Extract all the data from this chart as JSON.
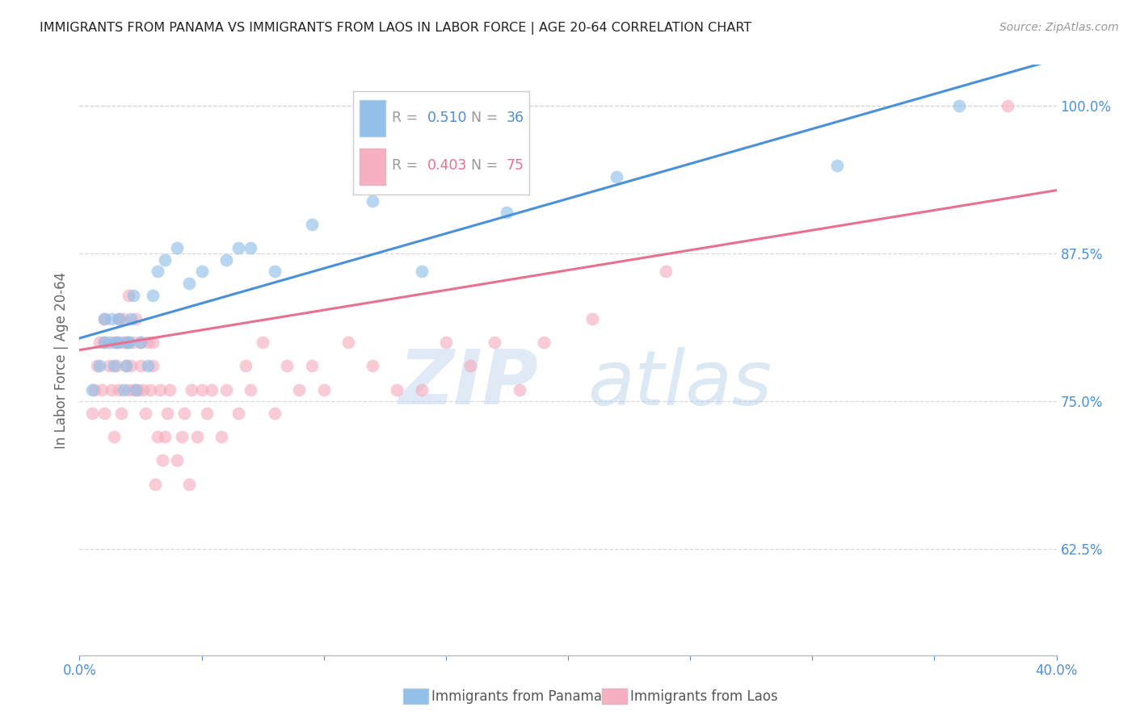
{
  "title": "IMMIGRANTS FROM PANAMA VS IMMIGRANTS FROM LAOS IN LABOR FORCE | AGE 20-64 CORRELATION CHART",
  "source": "Source: ZipAtlas.com",
  "ylabel": "In Labor Force | Age 20-64",
  "xlim": [
    0.0,
    0.4
  ],
  "ylim": [
    0.535,
    1.035
  ],
  "xticks": [
    0.0,
    0.05,
    0.1,
    0.15,
    0.2,
    0.25,
    0.3,
    0.35,
    0.4
  ],
  "xticklabels": [
    "0.0%",
    "",
    "",
    "",
    "",
    "",
    "",
    "",
    "40.0%"
  ],
  "ytick_positions": [
    0.625,
    0.75,
    0.875,
    1.0
  ],
  "ytick_labels": [
    "62.5%",
    "75.0%",
    "87.5%",
    "100.0%"
  ],
  "blue_R": 0.51,
  "blue_N": 36,
  "pink_R": 0.403,
  "pink_N": 75,
  "blue_color": "#92c0e8",
  "pink_color": "#f5afc0",
  "blue_line_color": "#4a90d9",
  "pink_line_color": "#e87090",
  "watermark_zip": "ZIP",
  "watermark_atlas": "atlas",
  "legend_label_blue": "Immigrants from Panama",
  "legend_label_pink": "Immigrants from Laos",
  "panama_x": [
    0.005,
    0.008,
    0.01,
    0.01,
    0.012,
    0.013,
    0.014,
    0.015,
    0.016,
    0.016,
    0.018,
    0.019,
    0.02,
    0.02,
    0.021,
    0.022,
    0.023,
    0.025,
    0.028,
    0.03,
    0.032,
    0.035,
    0.04,
    0.045,
    0.05,
    0.06,
    0.065,
    0.07,
    0.08,
    0.095,
    0.12,
    0.14,
    0.175,
    0.22,
    0.31,
    0.36
  ],
  "panama_y": [
    0.76,
    0.78,
    0.8,
    0.82,
    0.8,
    0.82,
    0.78,
    0.8,
    0.8,
    0.82,
    0.76,
    0.78,
    0.8,
    0.8,
    0.82,
    0.84,
    0.76,
    0.8,
    0.78,
    0.84,
    0.86,
    0.87,
    0.88,
    0.85,
    0.86,
    0.87,
    0.88,
    0.88,
    0.86,
    0.9,
    0.92,
    0.86,
    0.91,
    0.94,
    0.95,
    1.0
  ],
  "laos_x": [
    0.005,
    0.006,
    0.007,
    0.008,
    0.009,
    0.01,
    0.01,
    0.01,
    0.012,
    0.013,
    0.014,
    0.014,
    0.015,
    0.015,
    0.016,
    0.016,
    0.017,
    0.018,
    0.018,
    0.019,
    0.019,
    0.02,
    0.02,
    0.021,
    0.022,
    0.022,
    0.023,
    0.024,
    0.025,
    0.025,
    0.026,
    0.027,
    0.028,
    0.029,
    0.03,
    0.03,
    0.031,
    0.032,
    0.033,
    0.034,
    0.035,
    0.036,
    0.037,
    0.04,
    0.042,
    0.043,
    0.045,
    0.046,
    0.048,
    0.05,
    0.052,
    0.054,
    0.058,
    0.06,
    0.065,
    0.068,
    0.07,
    0.075,
    0.08,
    0.085,
    0.09,
    0.095,
    0.1,
    0.11,
    0.12,
    0.13,
    0.14,
    0.15,
    0.16,
    0.17,
    0.18,
    0.19,
    0.21,
    0.24,
    0.38
  ],
  "laos_y": [
    0.74,
    0.76,
    0.78,
    0.8,
    0.76,
    0.8,
    0.82,
    0.74,
    0.78,
    0.76,
    0.8,
    0.72,
    0.78,
    0.8,
    0.76,
    0.82,
    0.74,
    0.8,
    0.82,
    0.78,
    0.8,
    0.76,
    0.84,
    0.78,
    0.8,
    0.76,
    0.82,
    0.76,
    0.78,
    0.8,
    0.76,
    0.74,
    0.8,
    0.76,
    0.78,
    0.8,
    0.68,
    0.72,
    0.76,
    0.7,
    0.72,
    0.74,
    0.76,
    0.7,
    0.72,
    0.74,
    0.68,
    0.76,
    0.72,
    0.76,
    0.74,
    0.76,
    0.72,
    0.76,
    0.74,
    0.78,
    0.76,
    0.8,
    0.74,
    0.78,
    0.76,
    0.78,
    0.76,
    0.8,
    0.78,
    0.76,
    0.76,
    0.8,
    0.78,
    0.8,
    0.76,
    0.8,
    0.82,
    0.86,
    1.0
  ],
  "background_color": "#ffffff",
  "grid_color": "#d8d8d8"
}
